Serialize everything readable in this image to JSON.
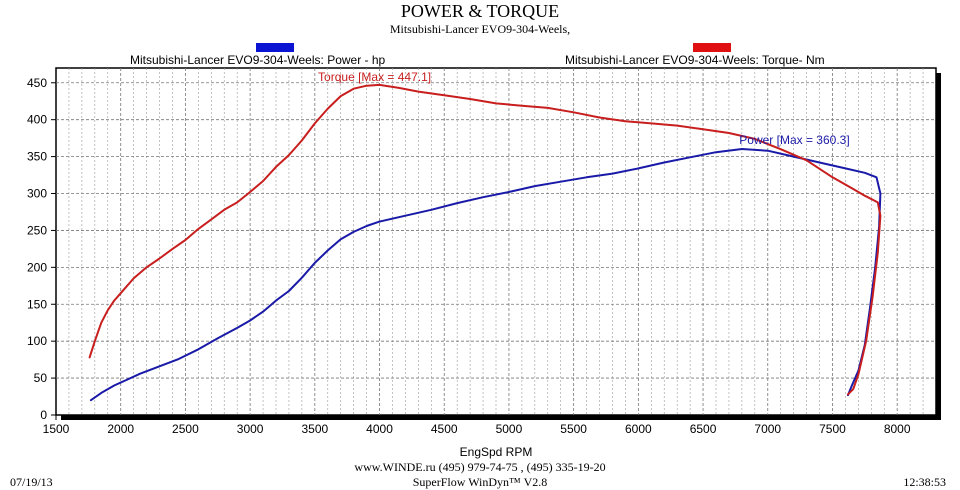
{
  "header": {
    "title": "POWER & TORQUE",
    "subtitle": "Mitsubishi-Lancer EVO9-304-Weels,"
  },
  "footer": {
    "url_line": "www.WINDE.ru  (495) 979-74-75 , (495) 335-19-20",
    "software": "SuperFlow WinDyn™ V2.8",
    "date": "07/19/13",
    "time": "12:38:53"
  },
  "colors": {
    "power": "#1a1aa8",
    "torque": "#c81e1e",
    "legend_power_swatch": "#0a14d2",
    "legend_torque_swatch": "#e01010",
    "grid": "#9a9a9a"
  },
  "chart_data": {
    "type": "line",
    "xlabel": "EngSpd  RPM",
    "ylabel": "",
    "xlim": [
      1500,
      8300
    ],
    "ylim": [
      0,
      470
    ],
    "x_ticks": [
      "1500",
      "2000",
      "2500",
      "3000",
      "3500",
      "4000",
      "4500",
      "5000",
      "5500",
      "6000",
      "6500",
      "7000",
      "7500",
      "8000"
    ],
    "y_ticks": [
      "0",
      "50",
      "100",
      "150",
      "200",
      "250",
      "300",
      "350",
      "400",
      "450"
    ],
    "grid": true,
    "legend_placement": "top",
    "series": [
      {
        "name": "Mitsubishi-Lancer EVO9-304-Weels: Power -  hp",
        "annotation": "Power  [Max = 360.3]",
        "points": [
          [
            1770,
            20
          ],
          [
            1850,
            30
          ],
          [
            1950,
            40
          ],
          [
            2050,
            48
          ],
          [
            2150,
            56
          ],
          [
            2300,
            66
          ],
          [
            2450,
            76
          ],
          [
            2600,
            89
          ],
          [
            2750,
            104
          ],
          [
            2900,
            118
          ],
          [
            3000,
            128
          ],
          [
            3100,
            140
          ],
          [
            3200,
            155
          ],
          [
            3300,
            168
          ],
          [
            3400,
            186
          ],
          [
            3500,
            206
          ],
          [
            3600,
            223
          ],
          [
            3700,
            238
          ],
          [
            3800,
            248
          ],
          [
            3900,
            256
          ],
          [
            4000,
            262
          ],
          [
            4200,
            270
          ],
          [
            4400,
            278
          ],
          [
            4600,
            287
          ],
          [
            4800,
            295
          ],
          [
            5000,
            302
          ],
          [
            5200,
            310
          ],
          [
            5400,
            316
          ],
          [
            5600,
            322
          ],
          [
            5800,
            327
          ],
          [
            6000,
            334
          ],
          [
            6200,
            342
          ],
          [
            6400,
            349
          ],
          [
            6600,
            356
          ],
          [
            6800,
            360.3
          ],
          [
            7000,
            358
          ],
          [
            7200,
            350
          ],
          [
            7400,
            342
          ],
          [
            7600,
            334
          ],
          [
            7750,
            328
          ],
          [
            7840,
            322
          ],
          [
            7870,
            300
          ],
          [
            7860,
            255
          ],
          [
            7830,
            200
          ],
          [
            7790,
            145
          ],
          [
            7750,
            95
          ],
          [
            7700,
            60
          ],
          [
            7650,
            40
          ],
          [
            7620,
            27
          ]
        ]
      },
      {
        "name": "Mitsubishi-Lancer EVO9-304-Weels: Torque-  Nm",
        "annotation": "Torque  [Max = 447.1]",
        "points": [
          [
            1760,
            78
          ],
          [
            1800,
            100
          ],
          [
            1850,
            125
          ],
          [
            1900,
            142
          ],
          [
            1950,
            155
          ],
          [
            2000,
            165
          ],
          [
            2100,
            185
          ],
          [
            2200,
            200
          ],
          [
            2300,
            212
          ],
          [
            2400,
            225
          ],
          [
            2500,
            237
          ],
          [
            2600,
            252
          ],
          [
            2700,
            265
          ],
          [
            2800,
            278
          ],
          [
            2900,
            288
          ],
          [
            3000,
            302
          ],
          [
            3100,
            317
          ],
          [
            3200,
            336
          ],
          [
            3300,
            352
          ],
          [
            3400,
            372
          ],
          [
            3500,
            395
          ],
          [
            3600,
            415
          ],
          [
            3700,
            432
          ],
          [
            3800,
            442
          ],
          [
            3900,
            446
          ],
          [
            4000,
            447.1
          ],
          [
            4150,
            443
          ],
          [
            4300,
            438
          ],
          [
            4500,
            433
          ],
          [
            4700,
            428
          ],
          [
            4900,
            422
          ],
          [
            5100,
            419
          ],
          [
            5300,
            416
          ],
          [
            5500,
            410
          ],
          [
            5700,
            403
          ],
          [
            5900,
            398
          ],
          [
            6100,
            395
          ],
          [
            6300,
            392
          ],
          [
            6500,
            387
          ],
          [
            6700,
            382
          ],
          [
            6900,
            374
          ],
          [
            7100,
            360
          ],
          [
            7300,
            345
          ],
          [
            7500,
            322
          ],
          [
            7650,
            307
          ],
          [
            7750,
            297
          ],
          [
            7850,
            288
          ],
          [
            7870,
            270
          ],
          [
            7850,
            220
          ],
          [
            7810,
            160
          ],
          [
            7760,
            100
          ],
          [
            7700,
            55
          ],
          [
            7660,
            35
          ],
          [
            7620,
            28
          ]
        ]
      }
    ]
  }
}
